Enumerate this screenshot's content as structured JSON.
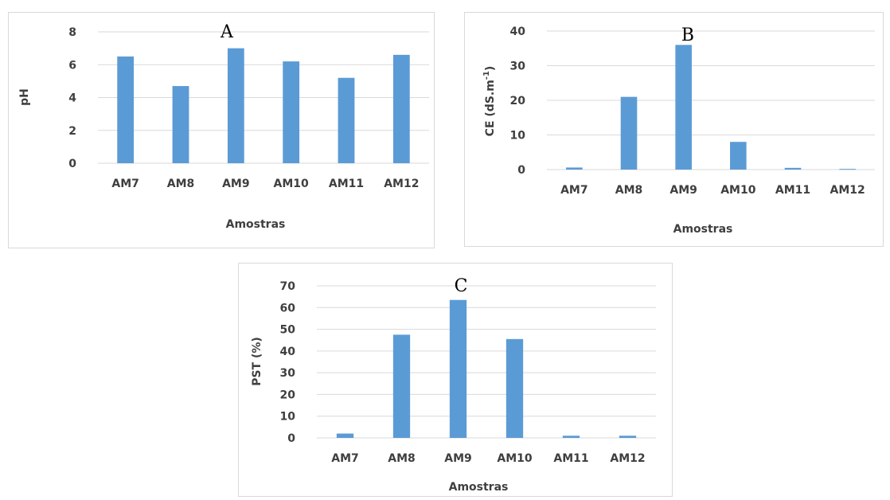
{
  "chart_data": [
    {
      "type": "bar",
      "panel_label": "A",
      "categories": [
        "AM7",
        "AM8",
        "AM9",
        "AM10",
        "AM11",
        "AM12"
      ],
      "values": [
        6.5,
        4.7,
        7.0,
        6.2,
        5.2,
        6.6
      ],
      "xlabel": "Amostras",
      "ylabel": "pH",
      "ylim": [
        0,
        8
      ],
      "yticks": [
        "0",
        "2",
        "4",
        "6",
        "8"
      ],
      "grid": true,
      "color": "#5b9bd5"
    },
    {
      "type": "bar",
      "panel_label": "B",
      "categories": [
        "AM7",
        "AM8",
        "AM9",
        "AM10",
        "AM11",
        "AM12"
      ],
      "values": [
        0.6,
        21.0,
        36.0,
        8.0,
        0.5,
        0.2
      ],
      "xlabel": "Amostras",
      "ylabel": "CE (dS.m",
      "ylabel_superscript": "-1",
      "ylabel_suffix": ")",
      "ylim": [
        0,
        40
      ],
      "yticks": [
        "0",
        "10",
        "20",
        "30",
        "40"
      ],
      "grid": true,
      "color": "#5b9bd5"
    },
    {
      "type": "bar",
      "panel_label": "C",
      "categories": [
        "AM7",
        "AM8",
        "AM9",
        "AM10",
        "AM11",
        "AM12"
      ],
      "values": [
        2.0,
        47.5,
        63.5,
        45.5,
        1.0,
        1.0
      ],
      "xlabel": "Amostras",
      "ylabel": "PST (%)",
      "ylim": [
        0,
        70
      ],
      "yticks": [
        "0",
        "10",
        "20",
        "30",
        "40",
        "50",
        "60",
        "70"
      ],
      "grid": true,
      "color": "#5b9bd5"
    }
  ]
}
